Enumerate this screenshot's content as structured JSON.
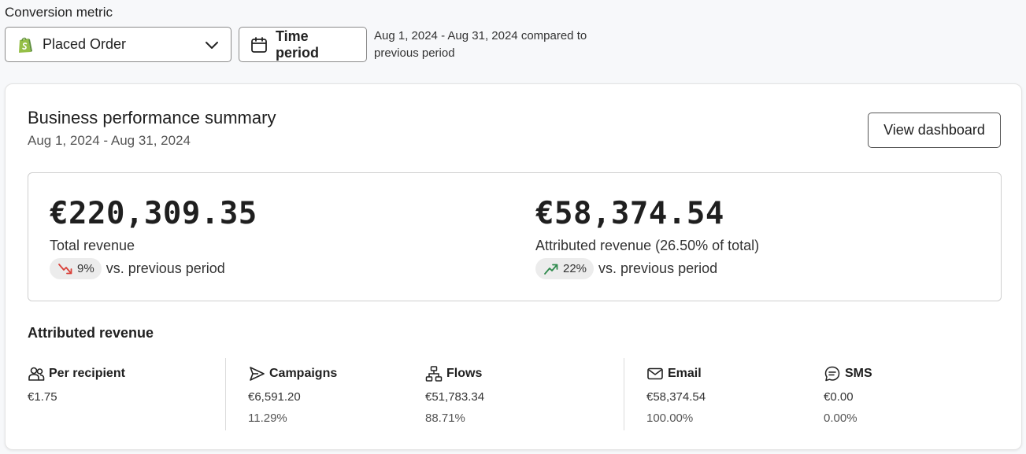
{
  "filters": {
    "conversion_label": "Conversion metric",
    "metric_value": "Placed Order",
    "time_button": "Time period",
    "period_text": "Aug 1, 2024 - Aug 31, 2024 compared to previous period"
  },
  "summary": {
    "title": "Business performance summary",
    "date_range": "Aug 1, 2024 - Aug 31, 2024",
    "view_button": "View dashboard",
    "total": {
      "value": "€220,309.35",
      "label": "Total revenue",
      "change": "9%",
      "direction": "down",
      "vs": "vs. previous period"
    },
    "attributed": {
      "value": "€58,374.54",
      "label": "Attributed revenue (26.50% of total)",
      "change": "22%",
      "direction": "up",
      "vs": "vs. previous period"
    }
  },
  "attributed_revenue": {
    "title": "Attributed revenue",
    "metrics": [
      {
        "icon": "users-icon",
        "label": "Per recipient",
        "value": "€1.75",
        "pct": ""
      },
      {
        "icon": "send-icon",
        "label": "Campaigns",
        "value": "€6,591.20",
        "pct": "11.29%"
      },
      {
        "icon": "flows-icon",
        "label": "Flows",
        "value": "€51,783.34",
        "pct": "88.71%"
      },
      {
        "icon": "mail-icon",
        "label": "Email",
        "value": "€58,374.54",
        "pct": "100.00%"
      },
      {
        "icon": "sms-icon",
        "label": "SMS",
        "value": "€0.00",
        "pct": "0.00%"
      }
    ]
  },
  "colors": {
    "down": "#d9413a",
    "up": "#2e8a4c",
    "shopify": "#5e8e3e"
  }
}
